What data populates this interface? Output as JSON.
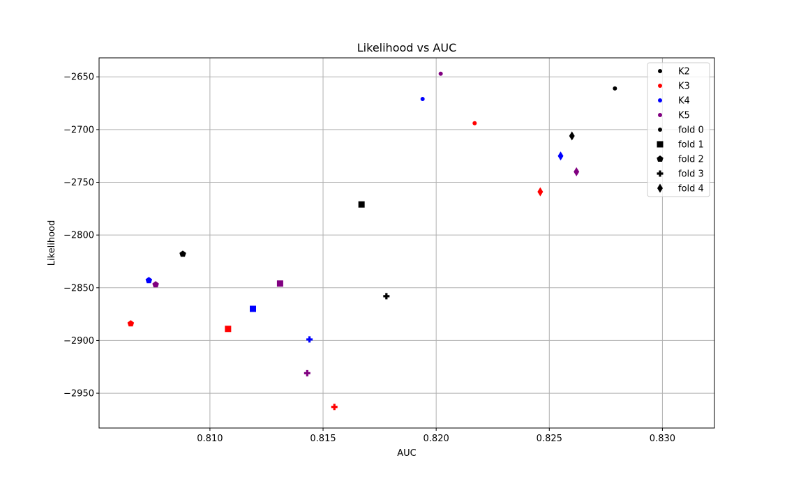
{
  "chart_data": {
    "type": "scatter",
    "title": "Likelihood vs AUC",
    "xlabel": "AUC",
    "ylabel": "Likelihood",
    "xlim": [
      0.8051,
      0.8323
    ],
    "ylim": [
      -2983,
      -2632
    ],
    "xticks": [
      0.81,
      0.815,
      0.82,
      0.825,
      0.83
    ],
    "xtick_labels": [
      "0.810",
      "0.815",
      "0.820",
      "0.825",
      "0.830"
    ],
    "yticks": [
      -2650,
      -2700,
      -2750,
      -2800,
      -2850,
      -2900,
      -2950
    ],
    "ytick_labels": [
      "−2650",
      "−2700",
      "−2750",
      "−2800",
      "−2850",
      "−2900",
      "−2950"
    ],
    "grid": true,
    "legend_position": "top-right",
    "colors": {
      "K2": "#000000",
      "K3": "#ff0000",
      "K4": "#0000ff",
      "K5": "#800080"
    },
    "markers": {
      "fold 0": "point",
      "fold 1": "square",
      "fold 2": "pentagon",
      "fold 3": "plus",
      "fold 4": "thin-diamond"
    },
    "legend": [
      {
        "label": "K2",
        "marker": "point",
        "color": "#000000"
      },
      {
        "label": "K3",
        "marker": "point",
        "color": "#ff0000"
      },
      {
        "label": "K4",
        "marker": "point",
        "color": "#0000ff"
      },
      {
        "label": "K5",
        "marker": "point",
        "color": "#800080"
      },
      {
        "label": "fold 0",
        "marker": "point",
        "color": "#000000"
      },
      {
        "label": "fold 1",
        "marker": "square",
        "color": "#000000"
      },
      {
        "label": "fold 2",
        "marker": "pentagon",
        "color": "#000000"
      },
      {
        "label": "fold 3",
        "marker": "plus",
        "color": "#000000"
      },
      {
        "label": "fold 4",
        "marker": "thin-diamond",
        "color": "#000000"
      }
    ],
    "points": [
      {
        "group": "K2",
        "fold": "fold 0",
        "x": 0.8279,
        "y": -2661
      },
      {
        "group": "K3",
        "fold": "fold 0",
        "x": 0.8217,
        "y": -2694
      },
      {
        "group": "K4",
        "fold": "fold 0",
        "x": 0.8194,
        "y": -2671
      },
      {
        "group": "K5",
        "fold": "fold 0",
        "x": 0.8202,
        "y": -2647
      },
      {
        "group": "K2",
        "fold": "fold 1",
        "x": 0.8167,
        "y": -2771
      },
      {
        "group": "K3",
        "fold": "fold 1",
        "x": 0.8108,
        "y": -2889
      },
      {
        "group": "K4",
        "fold": "fold 1",
        "x": 0.8119,
        "y": -2870
      },
      {
        "group": "K5",
        "fold": "fold 1",
        "x": 0.8131,
        "y": -2846
      },
      {
        "group": "K2",
        "fold": "fold 2",
        "x": 0.8088,
        "y": -2818
      },
      {
        "group": "K3",
        "fold": "fold 2",
        "x": 0.8065,
        "y": -2884
      },
      {
        "group": "K4",
        "fold": "fold 2",
        "x": 0.8073,
        "y": -2843
      },
      {
        "group": "K5",
        "fold": "fold 2",
        "x": 0.8076,
        "y": -2847
      },
      {
        "group": "K2",
        "fold": "fold 3",
        "x": 0.8178,
        "y": -2858
      },
      {
        "group": "K3",
        "fold": "fold 3",
        "x": 0.8155,
        "y": -2963
      },
      {
        "group": "K4",
        "fold": "fold 3",
        "x": 0.8144,
        "y": -2899
      },
      {
        "group": "K5",
        "fold": "fold 3",
        "x": 0.8143,
        "y": -2931
      },
      {
        "group": "K2",
        "fold": "fold 4",
        "x": 0.826,
        "y": -2706
      },
      {
        "group": "K3",
        "fold": "fold 4",
        "x": 0.8246,
        "y": -2759
      },
      {
        "group": "K4",
        "fold": "fold 4",
        "x": 0.8255,
        "y": -2725
      },
      {
        "group": "K5",
        "fold": "fold 4",
        "x": 0.8262,
        "y": -2740
      }
    ]
  }
}
